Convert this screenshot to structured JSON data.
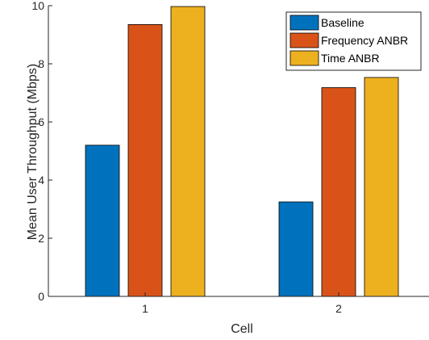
{
  "chart_data": {
    "type": "bar",
    "categories": [
      "1",
      "2"
    ],
    "series": [
      {
        "name": "Baseline",
        "color": "#0072BD",
        "values": [
          5.2,
          3.25
        ]
      },
      {
        "name": "Frequency ANBR",
        "color": "#D95319",
        "values": [
          9.35,
          7.18
        ]
      },
      {
        "name": "Time ANBR",
        "color": "#EDB120",
        "values": [
          9.97,
          7.53
        ]
      }
    ],
    "xlabel": "Cell",
    "ylabel": "Mean User Throughput (Mbps)",
    "ylim": [
      0,
      10
    ],
    "yticks": [
      0,
      2,
      4,
      6,
      8,
      10
    ],
    "grid": false,
    "legend_position": "top-right"
  }
}
